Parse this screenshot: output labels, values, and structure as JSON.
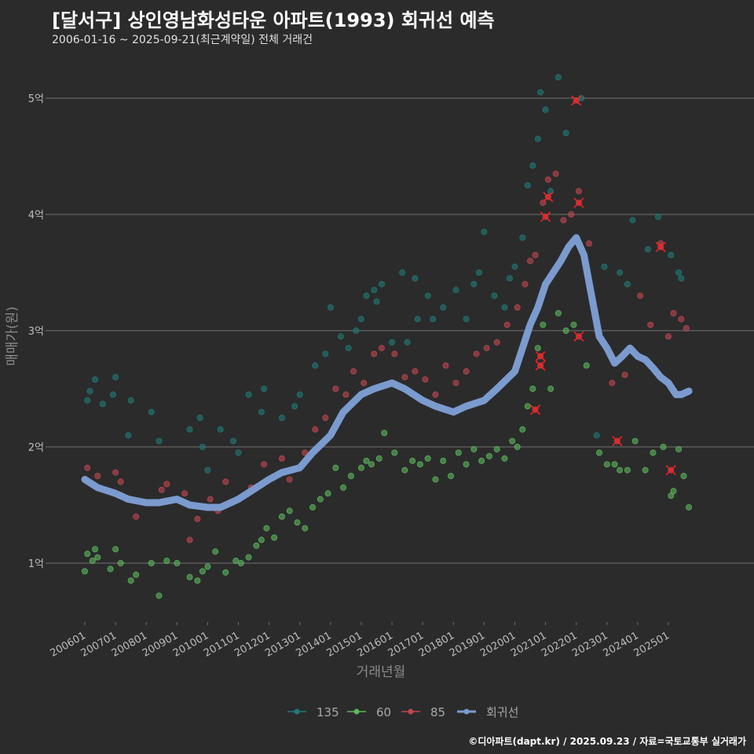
{
  "title": "[달서구] 상인영남화성타운 아파트(1993) 회귀선 예측",
  "subtitle": "2006-01-16 ~ 2025-09-21(최근계약일) 전체 거래건",
  "caption": "©디아파트(dapt.kr) / 2025.09.23 / 자료=국토교통부 실거래가",
  "colors": {
    "background": "#2b2b2c",
    "grid": "#707070",
    "s135": "#1f7a78",
    "s60": "#5cb85c",
    "s85": "#c0474f",
    "regression": "#7b9bcf",
    "marker_x": "#ff1e1e"
  },
  "chart_data": {
    "type": "scatter",
    "title": "[달서구] 상인영남화성타운 아파트(1993) 회귀선 예측",
    "xlabel": "거래년월",
    "ylabel": "매매가(원)",
    "xlim": [
      "2005-09",
      "2025-12"
    ],
    "ylim": [
      0.5,
      5.5
    ],
    "y_unit": "억",
    "y_ticks": [
      1,
      2,
      3,
      4,
      5
    ],
    "y_tick_labels": [
      "1억",
      "2억",
      "3억",
      "4억",
      "5억"
    ],
    "x_tick_labels": [
      "200601",
      "200701",
      "200801",
      "200901",
      "201001",
      "201101",
      "201201",
      "201301",
      "201401",
      "201501",
      "201601",
      "201701",
      "201801",
      "201901",
      "202001",
      "202101",
      "202201",
      "202301",
      "202401",
      "202501"
    ],
    "grid": true,
    "legend_position": "bottom",
    "legend": [
      "135",
      "60",
      "85",
      "회귀선"
    ],
    "series": [
      {
        "name": "135",
        "type": "scatter",
        "points": [
          [
            "2006-02",
            2.4
          ],
          [
            "2006-03",
            2.48
          ],
          [
            "2006-05",
            2.58
          ],
          [
            "2006-08",
            2.37
          ],
          [
            "2006-12",
            2.45
          ],
          [
            "2007-01",
            2.6
          ],
          [
            "2007-06",
            2.1
          ],
          [
            "2007-07",
            2.4
          ],
          [
            "2008-03",
            2.3
          ],
          [
            "2008-06",
            2.05
          ],
          [
            "2009-06",
            2.15
          ],
          [
            "2009-10",
            2.25
          ],
          [
            "2009-11",
            2.0
          ],
          [
            "2010-01",
            1.8
          ],
          [
            "2010-06",
            2.15
          ],
          [
            "2010-11",
            2.05
          ],
          [
            "2011-01",
            1.95
          ],
          [
            "2011-05",
            2.45
          ],
          [
            "2011-10",
            2.3
          ],
          [
            "2011-11",
            2.5
          ],
          [
            "2012-06",
            2.25
          ],
          [
            "2012-11",
            2.35
          ],
          [
            "2013-01",
            2.45
          ],
          [
            "2013-07",
            2.7
          ],
          [
            "2013-11",
            2.8
          ],
          [
            "2014-01",
            3.2
          ],
          [
            "2014-05",
            2.95
          ],
          [
            "2014-08",
            2.85
          ],
          [
            "2014-11",
            3.0
          ],
          [
            "2015-01",
            3.1
          ],
          [
            "2015-03",
            3.3
          ],
          [
            "2015-06",
            3.35
          ],
          [
            "2015-07",
            3.25
          ],
          [
            "2015-09",
            3.4
          ],
          [
            "2016-01",
            2.9
          ],
          [
            "2016-05",
            3.5
          ],
          [
            "2016-07",
            2.9
          ],
          [
            "2016-10",
            3.45
          ],
          [
            "2016-11",
            3.1
          ],
          [
            "2017-03",
            3.3
          ],
          [
            "2017-05",
            3.1
          ],
          [
            "2017-09",
            3.2
          ],
          [
            "2018-02",
            3.35
          ],
          [
            "2018-06",
            3.1
          ],
          [
            "2018-09",
            3.4
          ],
          [
            "2018-11",
            3.5
          ],
          [
            "2019-01",
            3.85
          ],
          [
            "2019-05",
            3.3
          ],
          [
            "2019-09",
            3.2
          ],
          [
            "2019-11",
            3.45
          ],
          [
            "2020-01",
            3.55
          ],
          [
            "2020-04",
            3.8
          ],
          [
            "2020-06",
            4.25
          ],
          [
            "2020-08",
            4.42
          ],
          [
            "2020-10",
            4.65
          ],
          [
            "2020-11",
            5.05
          ],
          [
            "2021-01",
            4.9
          ],
          [
            "2021-03",
            4.2
          ],
          [
            "2021-06",
            5.18
          ],
          [
            "2021-09",
            4.7
          ],
          [
            "2022-03",
            5.0
          ],
          [
            "2022-09",
            2.1
          ],
          [
            "2022-12",
            3.55
          ],
          [
            "2023-06",
            3.5
          ],
          [
            "2023-09",
            3.4
          ],
          [
            "2023-11",
            3.95
          ],
          [
            "2024-05",
            3.7
          ],
          [
            "2024-09",
            3.98
          ],
          [
            "2025-02",
            3.65
          ],
          [
            "2025-05",
            3.5
          ],
          [
            "2025-06",
            3.45
          ]
        ]
      },
      {
        "name": "60",
        "type": "scatter",
        "points": [
          [
            "2006-01",
            0.93
          ],
          [
            "2006-02",
            1.08
          ],
          [
            "2006-04",
            1.02
          ],
          [
            "2006-05",
            1.12
          ],
          [
            "2006-06",
            1.05
          ],
          [
            "2006-11",
            0.95
          ],
          [
            "2007-01",
            1.12
          ],
          [
            "2007-03",
            1.0
          ],
          [
            "2007-07",
            0.85
          ],
          [
            "2007-09",
            0.9
          ],
          [
            "2008-03",
            1.0
          ],
          [
            "2008-06",
            0.72
          ],
          [
            "2008-09",
            1.02
          ],
          [
            "2009-01",
            1.0
          ],
          [
            "2009-06",
            0.88
          ],
          [
            "2009-09",
            0.85
          ],
          [
            "2009-11",
            0.93
          ],
          [
            "2010-01",
            0.97
          ],
          [
            "2010-04",
            1.1
          ],
          [
            "2010-08",
            0.92
          ],
          [
            "2010-12",
            1.02
          ],
          [
            "2011-02",
            1.0
          ],
          [
            "2011-05",
            1.05
          ],
          [
            "2011-08",
            1.15
          ],
          [
            "2011-10",
            1.2
          ],
          [
            "2011-12",
            1.3
          ],
          [
            "2012-03",
            1.22
          ],
          [
            "2012-06",
            1.4
          ],
          [
            "2012-09",
            1.45
          ],
          [
            "2012-12",
            1.35
          ],
          [
            "2013-03",
            1.3
          ],
          [
            "2013-06",
            1.48
          ],
          [
            "2013-09",
            1.55
          ],
          [
            "2013-12",
            1.6
          ],
          [
            "2014-03",
            1.82
          ],
          [
            "2014-06",
            1.65
          ],
          [
            "2014-09",
            1.75
          ],
          [
            "2015-01",
            1.82
          ],
          [
            "2015-03",
            1.88
          ],
          [
            "2015-05",
            1.85
          ],
          [
            "2015-08",
            1.9
          ],
          [
            "2015-10",
            2.12
          ],
          [
            "2016-02",
            1.95
          ],
          [
            "2016-06",
            1.8
          ],
          [
            "2016-09",
            1.88
          ],
          [
            "2016-12",
            1.85
          ],
          [
            "2017-03",
            1.9
          ],
          [
            "2017-06",
            1.72
          ],
          [
            "2017-09",
            1.88
          ],
          [
            "2017-12",
            1.75
          ],
          [
            "2018-03",
            1.95
          ],
          [
            "2018-06",
            1.85
          ],
          [
            "2018-09",
            1.98
          ],
          [
            "2018-12",
            1.88
          ],
          [
            "2019-03",
            1.92
          ],
          [
            "2019-06",
            1.98
          ],
          [
            "2019-09",
            1.9
          ],
          [
            "2019-12",
            2.05
          ],
          [
            "2020-02",
            2.0
          ],
          [
            "2020-04",
            2.15
          ],
          [
            "2020-06",
            2.35
          ],
          [
            "2020-08",
            2.5
          ],
          [
            "2020-10",
            2.85
          ],
          [
            "2020-12",
            3.05
          ],
          [
            "2021-03",
            2.5
          ],
          [
            "2021-06",
            3.15
          ],
          [
            "2021-09",
            3.0
          ],
          [
            "2021-12",
            3.05
          ],
          [
            "2022-05",
            2.7
          ],
          [
            "2022-10",
            1.95
          ],
          [
            "2023-01",
            1.85
          ],
          [
            "2023-04",
            1.85
          ],
          [
            "2023-06",
            1.8
          ],
          [
            "2023-09",
            1.8
          ],
          [
            "2023-12",
            2.05
          ],
          [
            "2024-04",
            1.8
          ],
          [
            "2024-07",
            1.95
          ],
          [
            "2024-11",
            2.0
          ],
          [
            "2025-02",
            1.58
          ],
          [
            "2025-03",
            1.62
          ],
          [
            "2025-05",
            1.98
          ],
          [
            "2025-07",
            1.75
          ],
          [
            "2025-09",
            1.48
          ]
        ]
      },
      {
        "name": "85",
        "type": "scatter",
        "points": [
          [
            "2006-02",
            1.82
          ],
          [
            "2006-06",
            1.75
          ],
          [
            "2007-01",
            1.78
          ],
          [
            "2007-03",
            1.7
          ],
          [
            "2007-09",
            1.4
          ],
          [
            "2008-07",
            1.63
          ],
          [
            "2008-09",
            1.68
          ],
          [
            "2009-01",
            1.55
          ],
          [
            "2009-04",
            1.6
          ],
          [
            "2009-06",
            1.2
          ],
          [
            "2009-09",
            1.38
          ],
          [
            "2010-02",
            1.55
          ],
          [
            "2010-05",
            1.45
          ],
          [
            "2010-08",
            1.7
          ],
          [
            "2011-01",
            1.55
          ],
          [
            "2011-06",
            1.65
          ],
          [
            "2011-11",
            1.85
          ],
          [
            "2012-06",
            1.9
          ],
          [
            "2012-09",
            1.72
          ],
          [
            "2013-03",
            1.95
          ],
          [
            "2013-07",
            2.15
          ],
          [
            "2013-11",
            2.25
          ],
          [
            "2014-03",
            2.5
          ],
          [
            "2014-07",
            2.45
          ],
          [
            "2014-10",
            2.65
          ],
          [
            "2015-02",
            2.55
          ],
          [
            "2015-06",
            2.8
          ],
          [
            "2015-09",
            2.85
          ],
          [
            "2016-02",
            2.8
          ],
          [
            "2016-06",
            2.6
          ],
          [
            "2016-10",
            2.65
          ],
          [
            "2017-02",
            2.58
          ],
          [
            "2017-06",
            2.45
          ],
          [
            "2017-10",
            2.7
          ],
          [
            "2018-02",
            2.55
          ],
          [
            "2018-06",
            2.65
          ],
          [
            "2018-10",
            2.8
          ],
          [
            "2019-02",
            2.85
          ],
          [
            "2019-06",
            2.9
          ],
          [
            "2019-10",
            3.05
          ],
          [
            "2020-02",
            3.2
          ],
          [
            "2020-05",
            3.4
          ],
          [
            "2020-07",
            3.6
          ],
          [
            "2020-09",
            3.65
          ],
          [
            "2020-12",
            4.1
          ],
          [
            "2021-02",
            4.3
          ],
          [
            "2021-05",
            4.35
          ],
          [
            "2021-08",
            3.95
          ],
          [
            "2021-11",
            4.0
          ],
          [
            "2022-02",
            4.2
          ],
          [
            "2022-06",
            3.75
          ],
          [
            "2023-03",
            2.55
          ],
          [
            "2023-08",
            2.62
          ],
          [
            "2024-02",
            3.3
          ],
          [
            "2024-06",
            3.05
          ],
          [
            "2024-10",
            3.75
          ],
          [
            "2025-01",
            2.95
          ],
          [
            "2025-03",
            3.15
          ],
          [
            "2025-06",
            3.1
          ],
          [
            "2025-08",
            3.02
          ]
        ]
      },
      {
        "name": "회귀선",
        "type": "line",
        "points": [
          [
            "2006-01",
            1.72
          ],
          [
            "2006-06",
            1.65
          ],
          [
            "2007-01",
            1.6
          ],
          [
            "2007-06",
            1.55
          ],
          [
            "2008-01",
            1.52
          ],
          [
            "2008-06",
            1.52
          ],
          [
            "2009-01",
            1.55
          ],
          [
            "2009-06",
            1.5
          ],
          [
            "2010-01",
            1.48
          ],
          [
            "2010-06",
            1.48
          ],
          [
            "2011-01",
            1.55
          ],
          [
            "2011-06",
            1.62
          ],
          [
            "2012-01",
            1.72
          ],
          [
            "2012-06",
            1.78
          ],
          [
            "2013-01",
            1.82
          ],
          [
            "2013-06",
            1.95
          ],
          [
            "2014-01",
            2.1
          ],
          [
            "2014-06",
            2.3
          ],
          [
            "2015-01",
            2.45
          ],
          [
            "2015-06",
            2.5
          ],
          [
            "2016-01",
            2.55
          ],
          [
            "2016-06",
            2.5
          ],
          [
            "2017-01",
            2.4
          ],
          [
            "2017-06",
            2.35
          ],
          [
            "2018-01",
            2.3
          ],
          [
            "2018-06",
            2.35
          ],
          [
            "2019-01",
            2.4
          ],
          [
            "2019-06",
            2.5
          ],
          [
            "2020-01",
            2.65
          ],
          [
            "2020-04",
            2.85
          ],
          [
            "2020-07",
            3.05
          ],
          [
            "2020-10",
            3.2
          ],
          [
            "2021-01",
            3.4
          ],
          [
            "2021-04",
            3.5
          ],
          [
            "2021-07",
            3.6
          ],
          [
            "2021-10",
            3.72
          ],
          [
            "2022-01",
            3.8
          ],
          [
            "2022-04",
            3.65
          ],
          [
            "2022-07",
            3.3
          ],
          [
            "2022-10",
            2.95
          ],
          [
            "2023-01",
            2.85
          ],
          [
            "2023-04",
            2.72
          ],
          [
            "2023-07",
            2.78
          ],
          [
            "2023-10",
            2.85
          ],
          [
            "2024-01",
            2.78
          ],
          [
            "2024-04",
            2.75
          ],
          [
            "2024-07",
            2.68
          ],
          [
            "2024-10",
            2.6
          ],
          [
            "2025-01",
            2.55
          ],
          [
            "2025-04",
            2.45
          ],
          [
            "2025-06",
            2.45
          ],
          [
            "2025-09",
            2.48
          ]
        ]
      }
    ],
    "highlighted_transactions": [
      [
        "2020-09",
        2.32
      ],
      [
        "2020-11",
        2.78
      ],
      [
        "2020-11",
        2.7
      ],
      [
        "2021-01",
        3.98
      ],
      [
        "2021-02",
        4.15
      ],
      [
        "2022-01",
        4.98
      ],
      [
        "2022-02",
        4.1
      ],
      [
        "2022-02",
        2.95
      ],
      [
        "2023-05",
        2.05
      ],
      [
        "2024-10",
        3.72
      ],
      [
        "2025-02",
        1.8
      ]
    ]
  }
}
